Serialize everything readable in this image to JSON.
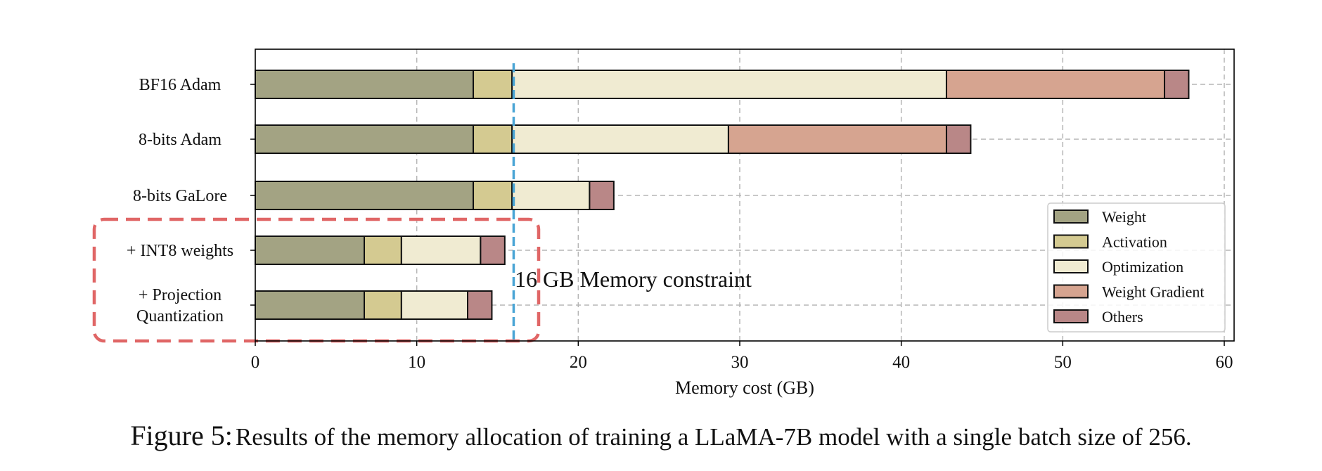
{
  "chart_data": {
    "type": "bar",
    "orientation": "horizontal",
    "stacked": true,
    "title": "",
    "xlabel": "Memory cost (GB)",
    "ylabel": "",
    "xlim": [
      0,
      60.6
    ],
    "xticks": [
      0,
      10,
      20,
      30,
      40,
      50,
      60
    ],
    "grid": true,
    "legend_position": "lower-right",
    "categories": [
      [
        "BF16 Adam"
      ],
      [
        "8-bits Adam"
      ],
      [
        "8-bits GaLore"
      ],
      [
        "+ INT8 weights"
      ],
      [
        "+ Projection",
        "Quantization"
      ]
    ],
    "series": [
      {
        "name": "Weight",
        "color": "#a3a383",
        "values": [
          13.5,
          13.5,
          13.5,
          6.75,
          6.75
        ]
      },
      {
        "name": "Activation",
        "color": "#d4ca91",
        "values": [
          2.4,
          2.4,
          2.4,
          2.3,
          2.3
        ]
      },
      {
        "name": "Optimization",
        "color": "#f0ebd2",
        "values": [
          26.9,
          13.4,
          4.8,
          4.9,
          4.1
        ]
      },
      {
        "name": "Weight Gradient",
        "color": "#d6a490",
        "values": [
          13.5,
          13.5,
          0,
          0,
          0
        ]
      },
      {
        "name": "Others",
        "color": "#b98787",
        "values": [
          1.5,
          1.5,
          1.5,
          1.5,
          1.5
        ]
      }
    ],
    "reference_line": {
      "x": 16,
      "color": "#4aa5d5",
      "label": "16 GB Memory constraint"
    },
    "highlight_box": {
      "color": "#e06666",
      "categories": [
        "+ INT8 weights",
        "+ Projection Quantization"
      ]
    }
  },
  "caption": {
    "label": "Figure 5:",
    "text": "Results of the memory allocation of training a LLaMA-7B model with a single batch size of 256."
  }
}
